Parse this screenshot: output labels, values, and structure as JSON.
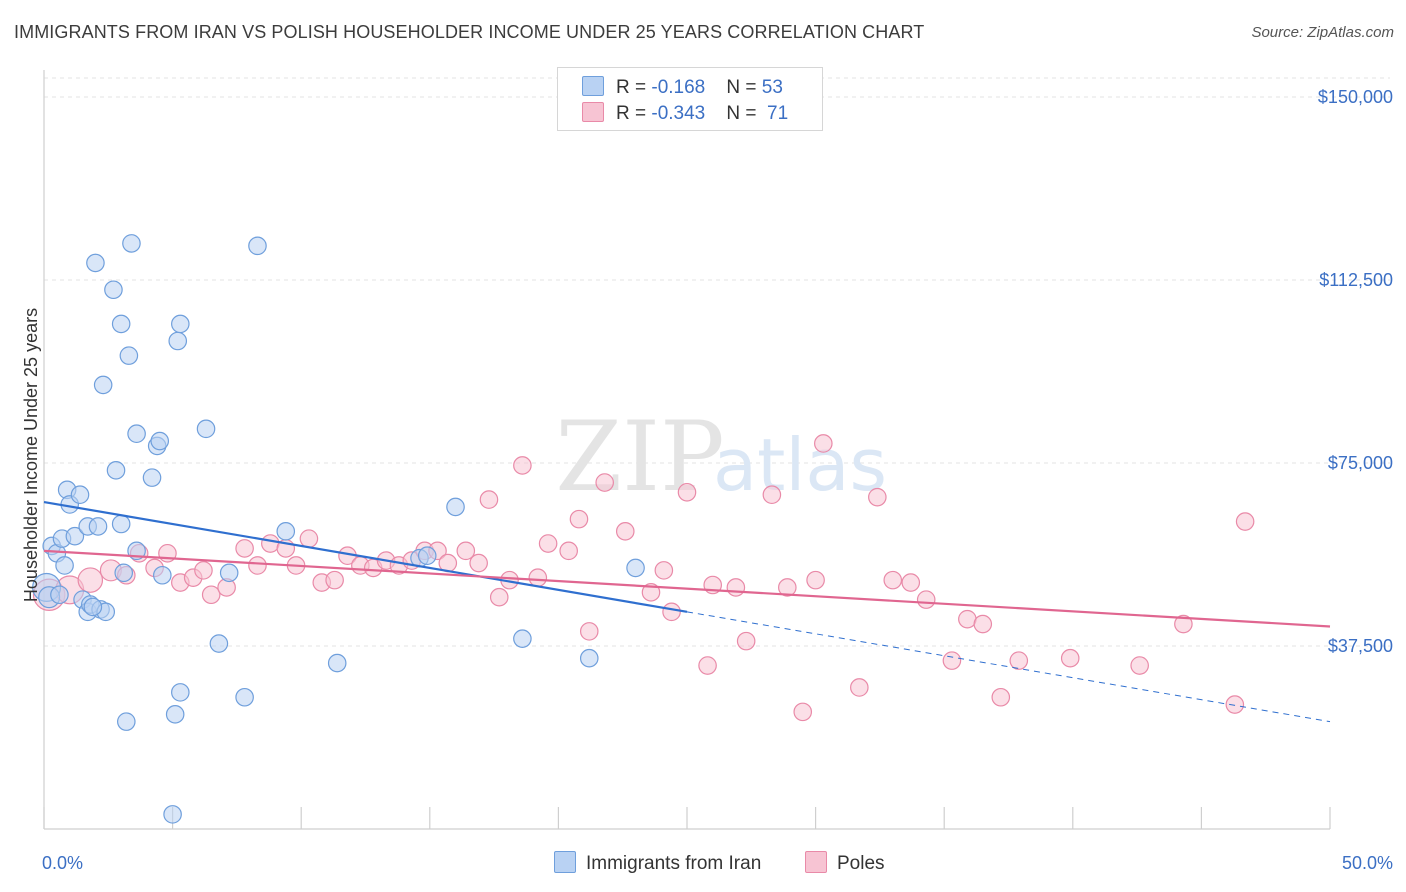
{
  "title": "IMMIGRANTS FROM IRAN VS POLISH HOUSEHOLDER INCOME UNDER 25 YEARS CORRELATION CHART",
  "source": "Source: ZipAtlas.com",
  "watermark": {
    "zip": "ZIP",
    "atlas": "atlas"
  },
  "colors": {
    "iran_fill": "#b9d2f3",
    "iran_stroke": "#6f9fdc",
    "iran_line": "#2f6fcf",
    "poles_fill": "#f7c4d3",
    "poles_stroke": "#e98aa8",
    "poles_line": "#e06690",
    "axis_text": "#3b6fc4",
    "grid": "#e3e3e3"
  },
  "legend": {
    "rows": [
      {
        "r_label": "R = ",
        "r_value": "-0.168",
        "n_label": "N = ",
        "n_value": "53"
      },
      {
        "r_label": "R = ",
        "r_value": "-0.343",
        "n_label": "N = ",
        "n_value": "71"
      }
    ]
  },
  "bottom_legend": [
    "Immigrants from Iran",
    "Poles"
  ],
  "chart_data": {
    "type": "scatter",
    "title": "IMMIGRANTS FROM IRAN VS POLISH HOUSEHOLDER INCOME UNDER 25 YEARS CORRELATION CHART",
    "xlabel": "",
    "ylabel": "Householder Income Under 25 years",
    "xlim": [
      0,
      50
    ],
    "ylim": [
      0,
      155000
    ],
    "x_tick_labels": [
      "0.0%",
      "50.0%"
    ],
    "y_ticks": [
      37500,
      75000,
      112500,
      150000
    ],
    "y_tick_labels": [
      "$37,500",
      "$75,000",
      "$112,500",
      "$150,000"
    ],
    "grid": true,
    "legend_position": "top-center",
    "series": [
      {
        "name": "Immigrants from Iran",
        "trend": {
          "x": [
            0,
            25
          ],
          "y": [
            67000,
            44500
          ],
          "dashed_extension_to_x": 50,
          "dashed_end_y": 22000
        },
        "points": [
          [
            0.1,
            49500,
            16
          ],
          [
            0.2,
            47500,
            12
          ],
          [
            0.3,
            58000,
            10
          ],
          [
            0.5,
            56500,
            10
          ],
          [
            0.7,
            59500,
            10
          ],
          [
            0.8,
            54000,
            10
          ],
          [
            0.9,
            69500,
            10
          ],
          [
            1.0,
            66500,
            10
          ],
          [
            1.2,
            60000,
            10
          ],
          [
            1.4,
            68500,
            10
          ],
          [
            1.5,
            47000,
            10
          ],
          [
            1.7,
            44500,
            10
          ],
          [
            1.7,
            62000,
            10
          ],
          [
            1.8,
            46000,
            10
          ],
          [
            2.0,
            116000,
            10
          ],
          [
            2.1,
            62000,
            10
          ],
          [
            2.2,
            45000,
            10
          ],
          [
            2.3,
            91000,
            10
          ],
          [
            2.4,
            44500,
            10
          ],
          [
            2.7,
            110500,
            10
          ],
          [
            2.8,
            73500,
            10
          ],
          [
            3.0,
            103500,
            10
          ],
          [
            3.0,
            62500,
            10
          ],
          [
            3.1,
            52500,
            10
          ],
          [
            3.2,
            22000,
            10
          ],
          [
            3.3,
            97000,
            10
          ],
          [
            3.4,
            120000,
            10
          ],
          [
            3.6,
            57000,
            10
          ],
          [
            3.6,
            81000,
            10
          ],
          [
            4.2,
            72000,
            10
          ],
          [
            4.4,
            78500,
            10
          ],
          [
            4.5,
            79500,
            10
          ],
          [
            5.0,
            3000,
            10
          ],
          [
            5.1,
            23500,
            10
          ],
          [
            5.2,
            100000,
            10
          ],
          [
            5.3,
            103500,
            10
          ],
          [
            5.3,
            28000,
            10
          ],
          [
            6.3,
            82000,
            10
          ],
          [
            6.8,
            38000,
            10
          ],
          [
            7.2,
            52500,
            10
          ],
          [
            7.8,
            27000,
            10
          ],
          [
            8.3,
            119500,
            10
          ],
          [
            9.4,
            61000,
            10
          ],
          [
            11.4,
            34000,
            10
          ],
          [
            14.6,
            55500,
            10
          ],
          [
            14.9,
            56000,
            10
          ],
          [
            16.0,
            66000,
            10
          ],
          [
            18.6,
            39000,
            10
          ],
          [
            21.2,
            35000,
            10
          ],
          [
            23.0,
            53500,
            10
          ],
          [
            0.6,
            48000,
            10
          ],
          [
            1.9,
            45500,
            10
          ],
          [
            4.6,
            52000,
            10
          ]
        ]
      },
      {
        "name": "Poles",
        "trend": {
          "x": [
            0,
            50
          ],
          "y": [
            57000,
            41500
          ]
        },
        "points": [
          [
            0.2,
            48000,
            18
          ],
          [
            1.0,
            49000,
            16
          ],
          [
            1.8,
            51000,
            14
          ],
          [
            2.6,
            53000,
            12
          ],
          [
            3.2,
            52000,
            10
          ],
          [
            3.7,
            56500,
            10
          ],
          [
            4.3,
            53500,
            10
          ],
          [
            4.8,
            56500,
            10
          ],
          [
            5.3,
            50500,
            10
          ],
          [
            5.8,
            51500,
            10
          ],
          [
            6.2,
            53000,
            10
          ],
          [
            6.5,
            48000,
            10
          ],
          [
            7.1,
            49500,
            10
          ],
          [
            7.8,
            57500,
            10
          ],
          [
            8.3,
            54000,
            10
          ],
          [
            8.8,
            58500,
            10
          ],
          [
            9.4,
            57500,
            10
          ],
          [
            9.8,
            54000,
            10
          ],
          [
            10.3,
            59500,
            10
          ],
          [
            10.8,
            50500,
            10
          ],
          [
            11.3,
            51000,
            10
          ],
          [
            11.8,
            56000,
            10
          ],
          [
            12.3,
            54000,
            10
          ],
          [
            12.8,
            53500,
            10
          ],
          [
            13.3,
            55000,
            10
          ],
          [
            13.8,
            54000,
            10
          ],
          [
            14.3,
            55000,
            10
          ],
          [
            14.8,
            57000,
            10
          ],
          [
            15.3,
            57000,
            10
          ],
          [
            15.7,
            54500,
            10
          ],
          [
            16.4,
            57000,
            10
          ],
          [
            16.9,
            54500,
            10
          ],
          [
            17.3,
            67500,
            10
          ],
          [
            17.7,
            47500,
            10
          ],
          [
            18.1,
            51000,
            10
          ],
          [
            18.6,
            74500,
            10
          ],
          [
            19.2,
            51500,
            10
          ],
          [
            19.6,
            58500,
            10
          ],
          [
            20.4,
            57000,
            10
          ],
          [
            20.8,
            63500,
            10
          ],
          [
            21.2,
            40500,
            10
          ],
          [
            21.8,
            71000,
            10
          ],
          [
            22.6,
            61000,
            10
          ],
          [
            23.6,
            48500,
            10
          ],
          [
            24.1,
            53000,
            10
          ],
          [
            24.4,
            44500,
            10
          ],
          [
            25.0,
            69000,
            10
          ],
          [
            25.8,
            33500,
            10
          ],
          [
            26.0,
            50000,
            10
          ],
          [
            26.9,
            49500,
            10
          ],
          [
            27.3,
            38500,
            10
          ],
          [
            28.3,
            68500,
            10
          ],
          [
            28.9,
            49500,
            10
          ],
          [
            29.5,
            24000,
            10
          ],
          [
            30.0,
            51000,
            10
          ],
          [
            30.3,
            79000,
            10
          ],
          [
            31.7,
            29000,
            10
          ],
          [
            32.4,
            68000,
            10
          ],
          [
            33.0,
            51000,
            10
          ],
          [
            33.7,
            50500,
            10
          ],
          [
            34.3,
            47000,
            10
          ],
          [
            35.3,
            34500,
            10
          ],
          [
            35.9,
            43000,
            10
          ],
          [
            36.5,
            42000,
            10
          ],
          [
            37.2,
            27000,
            10
          ],
          [
            37.9,
            34500,
            10
          ],
          [
            39.9,
            35000,
            10
          ],
          [
            42.6,
            33500,
            10
          ],
          [
            44.3,
            42000,
            10
          ],
          [
            46.3,
            25500,
            10
          ],
          [
            46.7,
            63000,
            10
          ]
        ]
      }
    ]
  }
}
